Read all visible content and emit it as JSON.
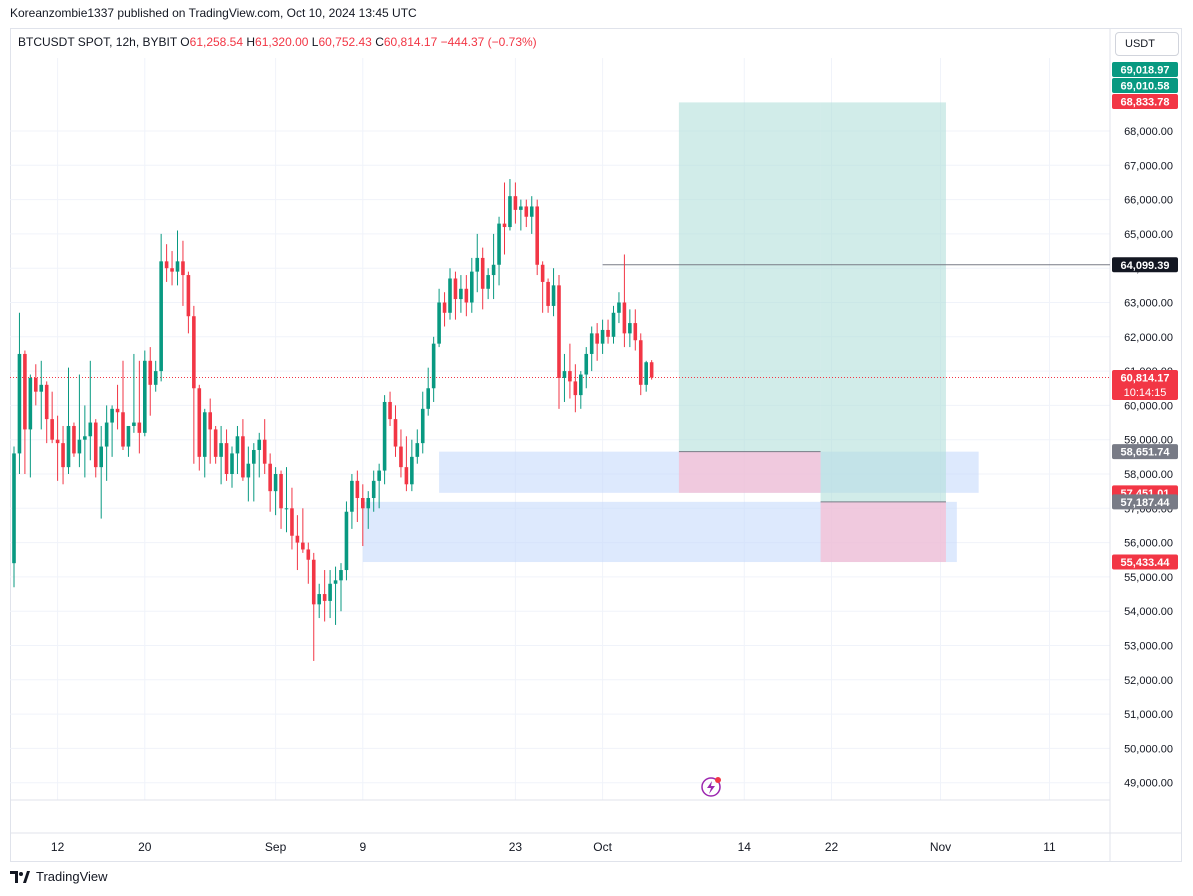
{
  "header": {
    "published": "Koreanzombie1337 published on TradingView.com, Oct 10, 2024 13:45 UTC"
  },
  "legend": {
    "symbol": "BTCUSDT SPOT, 12h, BYBIT",
    "o_label": "O",
    "o_value": "61,258.54",
    "h_label": "H",
    "h_value": "61,320.00",
    "l_label": "L",
    "l_value": "60,752.43",
    "c_label": "C",
    "c_value": "60,814.17",
    "change": "−444.37 (−0.73%)"
  },
  "currency_button": "USDT",
  "footer": {
    "brand": "TradingView"
  },
  "colors": {
    "up": "#089981",
    "down": "#f23645",
    "target_zone": "#b2dfdb",
    "stop_zone": "#f8bbd0",
    "demand_zone": "#c6dafc",
    "text_tick": "#131722"
  },
  "chart_data": {
    "type": "candlestick",
    "timeframe": "12h",
    "ylim": [
      48500,
      70500
    ],
    "y_ticks": [
      49000,
      50000,
      51000,
      52000,
      53000,
      54000,
      55000,
      56000,
      57000,
      58000,
      59000,
      60000,
      61000,
      62000,
      63000,
      64000,
      65000,
      66000,
      67000,
      68000
    ],
    "y_tick_labels": [
      "49,000.00",
      "50,000.00",
      "51,000.00",
      "52,000.00",
      "53,000.00",
      "54,000.00",
      "55,000.00",
      "56,000.00",
      "57,000.00",
      "58,000.00",
      "59,000.00",
      "60,000.00",
      "61,000.00",
      "62,000.00",
      "63,000.00",
      "64,000.00",
      "65,000.00",
      "66,000.00",
      "67,000.00",
      "68,000.00"
    ],
    "x_labels": [
      {
        "label": "12",
        "bar": 8
      },
      {
        "label": "20",
        "bar": 24
      },
      {
        "label": "Sep",
        "bar": 48
      },
      {
        "label": "9",
        "bar": 64
      },
      {
        "label": "23",
        "bar": 92
      },
      {
        "label": "Oct",
        "bar": 108
      },
      {
        "label": "14",
        "bar": 134
      },
      {
        "label": "22",
        "bar": 150
      },
      {
        "label": "Nov",
        "bar": 170
      },
      {
        "label": "11",
        "bar": 190
      }
    ],
    "ohlc": [
      [
        55400,
        58800,
        54700,
        58600
      ],
      [
        58600,
        62700,
        58000,
        61500
      ],
      [
        61500,
        61600,
        58000,
        59300
      ],
      [
        59300,
        60900,
        57900,
        60800
      ],
      [
        60800,
        61200,
        60000,
        60400
      ],
      [
        60400,
        61300,
        59300,
        60600
      ],
      [
        60600,
        60700,
        58900,
        59600
      ],
      [
        59600,
        60400,
        58900,
        59000
      ],
      [
        59000,
        59700,
        57800,
        58900
      ],
      [
        58900,
        59400,
        57700,
        58200
      ],
      [
        58200,
        61100,
        58000,
        59400
      ],
      [
        59400,
        59500,
        58500,
        58600
      ],
      [
        58600,
        60900,
        58200,
        59000
      ],
      [
        59000,
        60000,
        57900,
        59100
      ],
      [
        59100,
        61300,
        58400,
        59500
      ],
      [
        59500,
        59600,
        57900,
        58200
      ],
      [
        58200,
        59400,
        56700,
        58800
      ],
      [
        58800,
        60000,
        57800,
        59500
      ],
      [
        59500,
        60000,
        58500,
        59900
      ],
      [
        59900,
        60600,
        59300,
        59800
      ],
      [
        59800,
        61300,
        58700,
        58800
      ],
      [
        58800,
        59300,
        58500,
        59400
      ],
      [
        59400,
        61500,
        59200,
        59500
      ],
      [
        59500,
        61300,
        58600,
        59200
      ],
      [
        59200,
        61600,
        59100,
        61300
      ],
      [
        61300,
        61700,
        59700,
        60600
      ],
      [
        60600,
        61300,
        60400,
        61000
      ],
      [
        61000,
        65000,
        60700,
        64200
      ],
      [
        64200,
        64700,
        63600,
        64000
      ],
      [
        64000,
        64500,
        63500,
        63900
      ],
      [
        63900,
        65100,
        63500,
        64200
      ],
      [
        64200,
        64800,
        62900,
        63800
      ],
      [
        63800,
        63900,
        62100,
        62600
      ],
      [
        62600,
        62900,
        58300,
        60500
      ],
      [
        60500,
        60600,
        58100,
        58500
      ],
      [
        58500,
        59900,
        57900,
        59800
      ],
      [
        59800,
        60200,
        58300,
        59300
      ],
      [
        59300,
        59400,
        58300,
        58500
      ],
      [
        58500,
        59400,
        57700,
        58900
      ],
      [
        58900,
        59300,
        57800,
        58000
      ],
      [
        58000,
        58800,
        57600,
        58600
      ],
      [
        58600,
        59400,
        58000,
        59100
      ],
      [
        59100,
        59600,
        57800,
        57900
      ],
      [
        57900,
        58800,
        57200,
        58300
      ],
      [
        58300,
        58900,
        57200,
        58700
      ],
      [
        58700,
        59200,
        57900,
        59000
      ],
      [
        59000,
        59600,
        58000,
        58300
      ],
      [
        58300,
        58600,
        56900,
        57500
      ],
      [
        57500,
        58200,
        56800,
        58000
      ],
      [
        58000,
        58100,
        56400,
        57000
      ],
      [
        57000,
        58200,
        56300,
        57000
      ],
      [
        57000,
        57600,
        55800,
        56200
      ],
      [
        56200,
        56800,
        55200,
        56000
      ],
      [
        56000,
        57000,
        55700,
        55800
      ],
      [
        55800,
        56000,
        54800,
        55500
      ],
      [
        55500,
        55700,
        52550,
        54200
      ],
      [
        54200,
        54800,
        53800,
        54500
      ],
      [
        54500,
        55200,
        53700,
        54300
      ],
      [
        54300,
        55200,
        53800,
        54800
      ],
      [
        54800,
        55300,
        53600,
        54900
      ],
      [
        54900,
        55400,
        54000,
        55200
      ],
      [
        55200,
        57200,
        54900,
        56900
      ],
      [
        56900,
        58000,
        56400,
        57800
      ],
      [
        57800,
        58100,
        56600,
        57300
      ],
      [
        57300,
        57700,
        55900,
        57000
      ],
      [
        57000,
        57500,
        56400,
        57300
      ],
      [
        57300,
        58100,
        56900,
        57800
      ],
      [
        57800,
        58300,
        57000,
        58100
      ],
      [
        58100,
        60300,
        57700,
        60100
      ],
      [
        60100,
        60400,
        59400,
        59600
      ],
      [
        59600,
        60000,
        58500,
        58800
      ],
      [
        58800,
        59300,
        57900,
        58200
      ],
      [
        58200,
        59100,
        57500,
        57700
      ],
      [
        57700,
        59000,
        57500,
        58500
      ],
      [
        58500,
        59300,
        58300,
        58900
      ],
      [
        58900,
        60400,
        58600,
        59900
      ],
      [
        59900,
        61100,
        59700,
        60500
      ],
      [
        60500,
        62000,
        60100,
        61800
      ],
      [
        61800,
        63400,
        61700,
        63000
      ],
      [
        63000,
        63300,
        62300,
        62700
      ],
      [
        62700,
        64000,
        62500,
        63700
      ],
      [
        63700,
        63900,
        62500,
        63100
      ],
      [
        63100,
        63800,
        62700,
        63400
      ],
      [
        63400,
        63800,
        62600,
        63000
      ],
      [
        63000,
        64300,
        62700,
        63900
      ],
      [
        63900,
        65000,
        63300,
        64300
      ],
      [
        64300,
        64600,
        62800,
        63400
      ],
      [
        63400,
        64000,
        63100,
        63800
      ],
      [
        63800,
        65000,
        63100,
        64100
      ],
      [
        64100,
        65500,
        63500,
        65300
      ],
      [
        65300,
        66500,
        64400,
        65200
      ],
      [
        65200,
        66600,
        65100,
        66100
      ],
      [
        66100,
        66500,
        65300,
        65700
      ],
      [
        65700,
        66000,
        65100,
        65800
      ],
      [
        65800,
        66000,
        65200,
        65500
      ],
      [
        65500,
        66100,
        65000,
        65800
      ],
      [
        65800,
        66000,
        63800,
        64100
      ],
      [
        64100,
        64200,
        62700,
        63600
      ],
      [
        63600,
        63700,
        62700,
        62900
      ],
      [
        62900,
        64000,
        62600,
        63500
      ],
      [
        63500,
        63800,
        59900,
        60800
      ],
      [
        60800,
        61500,
        60100,
        61000
      ],
      [
        61000,
        61800,
        60200,
        60700
      ],
      [
        60700,
        61200,
        59800,
        60300
      ],
      [
        60300,
        61000,
        59900,
        60900
      ],
      [
        60900,
        61700,
        60500,
        61500
      ],
      [
        61500,
        62300,
        61000,
        62100
      ],
      [
        62100,
        62400,
        61300,
        61800
      ],
      [
        61800,
        62500,
        61500,
        62200
      ],
      [
        62200,
        62500,
        61800,
        62000
      ],
      [
        62000,
        62900,
        61800,
        62700
      ],
      [
        62700,
        63300,
        62400,
        63000
      ],
      [
        63000,
        64400,
        61700,
        62100
      ],
      [
        62100,
        62800,
        61700,
        62400
      ],
      [
        62400,
        62800,
        61600,
        61900
      ],
      [
        61900,
        62100,
        60300,
        60600
      ],
      [
        60600,
        61300,
        60400,
        61258.54
      ],
      [
        61258.54,
        61320,
        60752.43,
        60814.17
      ]
    ],
    "last_price": 60814.17,
    "price_labels": [
      {
        "price": 69018.97,
        "text": "69,018.97",
        "color": "#089981"
      },
      {
        "price": 69010.58,
        "text": "69,010.58",
        "color": "#089981"
      },
      {
        "price": 68833.78,
        "text": "68,833.78",
        "color": "#f23645"
      },
      {
        "price": 64099.39,
        "text": "64,099.39",
        "color": "#131722"
      },
      {
        "price": 60814.17,
        "text": "60,814.17",
        "color": "#f23645",
        "sub": "10:14:15"
      },
      {
        "price": 58651.74,
        "text": "58,651.74",
        "color": "#787b86"
      },
      {
        "price": 57451.01,
        "text": "57,451.01",
        "color": "#f23645"
      },
      {
        "price": 57187.44,
        "text": "57,187.44",
        "color": "#787b86"
      },
      {
        "price": 55433.44,
        "text": "55,433.44",
        "color": "#f23645"
      }
    ],
    "position_long_1": {
      "bar_from": 122,
      "bar_to": 148,
      "entry": 58651.74,
      "target": 68833.78,
      "stop": 57451.01
    },
    "position_long_2": {
      "bar_from": 148,
      "bar_to": 171,
      "entry": 57187.44,
      "target": 68833.78,
      "stop": 55433.44
    },
    "demand_zones": [
      {
        "bar_from": 78,
        "bar_to": 177,
        "top": 58651.74,
        "bottom": 57451.01
      },
      {
        "bar_from": 64,
        "bar_to": 173,
        "top": 57187.44,
        "bottom": 55433.44
      }
    ],
    "horizontal_line": {
      "price": 64099.39,
      "bar_from": 108
    }
  }
}
